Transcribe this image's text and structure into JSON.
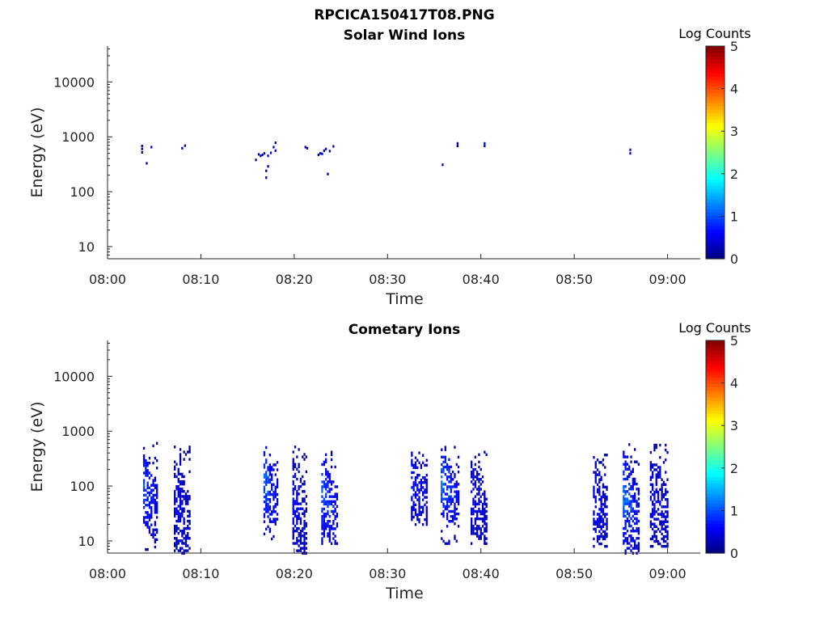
{
  "figure_title": "RPCICA150417T08.PNG",
  "chart_data": [
    {
      "type": "heatmap",
      "title": "Solar Wind Ions",
      "xlabel": "Time",
      "ylabel": "Energy (eV)",
      "x_ticks": [
        "08:00",
        "08:10",
        "08:20",
        "08:30",
        "08:40",
        "08:50",
        "09:00"
      ],
      "y_ticks": [
        "10",
        "100",
        "1000",
        "10000"
      ],
      "y_scale": "log",
      "xlim_minutes_after_0800": [
        0,
        63.5
      ],
      "ylim": [
        6,
        45000
      ],
      "colorbar": {
        "label": "Log Counts",
        "ticks": [
          "0",
          "1",
          "2",
          "3",
          "4",
          "5"
        ],
        "range": [
          0,
          5
        ],
        "colormap": "jet"
      },
      "cells": [
        [
          3.7,
          680,
          0.3
        ],
        [
          3.7,
          600,
          0.2
        ],
        [
          3.7,
          520,
          0.2
        ],
        [
          4.2,
          330,
          0.1
        ],
        [
          4.7,
          650,
          0.2
        ],
        [
          8.0,
          620,
          0.2
        ],
        [
          8.3,
          690,
          0.2
        ],
        [
          15.9,
          380,
          0.1
        ],
        [
          16.2,
          480,
          0.3
        ],
        [
          16.4,
          450,
          0.3
        ],
        [
          16.6,
          470,
          0.3
        ],
        [
          16.8,
          500,
          0.3
        ],
        [
          17.0,
          180,
          0.1
        ],
        [
          17.0,
          240,
          0.1
        ],
        [
          17.2,
          290,
          0.1
        ],
        [
          17.2,
          450,
          0.3
        ],
        [
          17.5,
          510,
          0.4
        ],
        [
          17.8,
          650,
          0.4
        ],
        [
          18.0,
          780,
          0.3
        ],
        [
          18.0,
          560,
          0.3
        ],
        [
          21.2,
          650,
          0.2
        ],
        [
          21.4,
          620,
          0.2
        ],
        [
          22.6,
          470,
          0.3
        ],
        [
          22.8,
          500,
          0.3
        ],
        [
          23.0,
          490,
          0.3
        ],
        [
          23.2,
          560,
          0.3
        ],
        [
          23.4,
          600,
          0.3
        ],
        [
          23.6,
          210,
          0.1
        ],
        [
          23.8,
          550,
          0.3
        ],
        [
          24.2,
          670,
          0.3
        ],
        [
          35.9,
          310,
          0.1
        ],
        [
          37.5,
          760,
          0.3
        ],
        [
          37.5,
          680,
          0.3
        ],
        [
          40.4,
          760,
          0.3
        ],
        [
          40.4,
          680,
          0.3
        ],
        [
          56.0,
          580,
          0.3
        ],
        [
          56.0,
          500,
          0.3
        ]
      ]
    },
    {
      "type": "heatmap",
      "title": "Cometary Ions",
      "xlabel": "Time",
      "ylabel": "Energy (eV)",
      "x_ticks": [
        "08:00",
        "08:10",
        "08:20",
        "08:30",
        "08:40",
        "08:50",
        "09:00"
      ],
      "y_ticks": [
        "10",
        "100",
        "1000",
        "10000"
      ],
      "y_scale": "log",
      "xlim_minutes_after_0800": [
        0,
        63.5
      ],
      "ylim": [
        6,
        45000
      ],
      "colorbar": {
        "label": "Log Counts",
        "ticks": [
          "0",
          "1",
          "2",
          "3",
          "4",
          "5"
        ],
        "range": [
          0,
          5
        ],
        "colormap": "jet"
      },
      "bursts": [
        {
          "start": 3.9,
          "end": 5.4,
          "emin": 7,
          "emax": 650,
          "peak": 1.2,
          "bottom": 14,
          "top": 380
        },
        {
          "start": 7.2,
          "end": 8.8,
          "emin": 6,
          "emax": 560,
          "peak": 0.7,
          "bottom": 6,
          "top": 300
        },
        {
          "start": 16.8,
          "end": 18.2,
          "emin": 8,
          "emax": 540,
          "peak": 1.4,
          "bottom": 25,
          "top": 420
        },
        {
          "start": 19.9,
          "end": 21.3,
          "emin": 6,
          "emax": 520,
          "peak": 0.8,
          "bottom": 6,
          "top": 320
        },
        {
          "start": 23.0,
          "end": 24.6,
          "emin": 9,
          "emax": 460,
          "peak": 1.3,
          "bottom": 10,
          "top": 300
        },
        {
          "start": 32.6,
          "end": 34.3,
          "emin": 20,
          "emax": 440,
          "peak": 0.9,
          "bottom": 25,
          "top": 420
        },
        {
          "start": 35.8,
          "end": 37.6,
          "emin": 9,
          "emax": 560,
          "peak": 1.4,
          "bottom": 25,
          "top": 380
        },
        {
          "start": 39.0,
          "end": 40.6,
          "emin": 9,
          "emax": 440,
          "peak": 0.7,
          "bottom": 12,
          "top": 280
        },
        {
          "start": 52.1,
          "end": 53.6,
          "emin": 8,
          "emax": 420,
          "peak": 0.8,
          "bottom": 9,
          "top": 300
        },
        {
          "start": 55.3,
          "end": 56.9,
          "emin": 6,
          "emax": 620,
          "peak": 1.5,
          "bottom": 6,
          "top": 420
        },
        {
          "start": 58.2,
          "end": 60.0,
          "emin": 8,
          "emax": 620,
          "peak": 0.7,
          "bottom": 9,
          "top": 340
        }
      ]
    }
  ]
}
